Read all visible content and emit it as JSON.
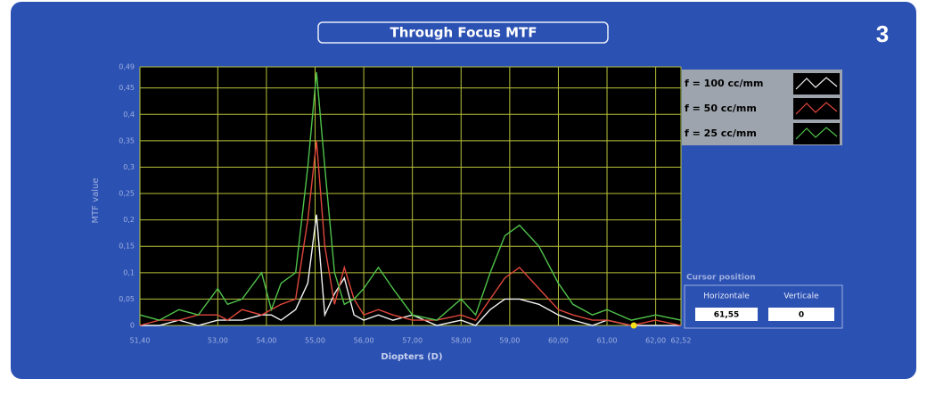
{
  "badge": "3",
  "chart_data": {
    "type": "line",
    "title": "Through Focus MTF",
    "x_label": "Diopters (D)",
    "y_label": "MTF value",
    "x": [
      51.4,
      51.8,
      52.2,
      52.6,
      53.0,
      53.2,
      53.5,
      53.9,
      54.1,
      54.3,
      54.6,
      54.85,
      55.03,
      55.2,
      55.4,
      55.6,
      55.8,
      56.0,
      56.3,
      56.6,
      57.0,
      57.5,
      58.0,
      58.3,
      58.6,
      58.9,
      59.2,
      59.6,
      60.0,
      60.3,
      60.7,
      61.0,
      61.5,
      62.0,
      62.52
    ],
    "series": [
      {
        "name": "f = 100 cc/mm",
        "color": "#f2f2f2",
        "values": [
          0.0,
          0.0,
          0.01,
          0.0,
          0.01,
          0.01,
          0.01,
          0.02,
          0.02,
          0.01,
          0.03,
          0.08,
          0.21,
          0.02,
          0.06,
          0.09,
          0.02,
          0.01,
          0.02,
          0.01,
          0.02,
          0.0,
          0.01,
          0.0,
          0.03,
          0.05,
          0.05,
          0.04,
          0.02,
          0.01,
          0.0,
          0.01,
          0.0,
          0.0,
          0.0
        ]
      },
      {
        "name": "f = 50 cc/mm",
        "color": "#e0463c",
        "values": [
          0.0,
          0.01,
          0.01,
          0.02,
          0.02,
          0.01,
          0.03,
          0.02,
          0.03,
          0.04,
          0.05,
          0.2,
          0.35,
          0.15,
          0.04,
          0.11,
          0.05,
          0.02,
          0.03,
          0.02,
          0.01,
          0.01,
          0.02,
          0.01,
          0.05,
          0.09,
          0.11,
          0.07,
          0.03,
          0.02,
          0.01,
          0.01,
          0.0,
          0.01,
          0.0
        ]
      },
      {
        "name": "f = 25 cc/mm",
        "color": "#4fc24a",
        "values": [
          0.02,
          0.01,
          0.03,
          0.02,
          0.07,
          0.04,
          0.05,
          0.1,
          0.03,
          0.08,
          0.1,
          0.3,
          0.48,
          0.3,
          0.1,
          0.04,
          0.05,
          0.07,
          0.11,
          0.07,
          0.02,
          0.01,
          0.05,
          0.02,
          0.1,
          0.17,
          0.19,
          0.15,
          0.08,
          0.04,
          0.02,
          0.03,
          0.01,
          0.02,
          0.01
        ]
      }
    ],
    "xlim": [
      51.4,
      62.52
    ],
    "xticks": [
      {
        "value": 51.4,
        "label": "51,40"
      },
      {
        "value": 53,
        "label": "53,00"
      },
      {
        "value": 54,
        "label": "54,00"
      },
      {
        "value": 55,
        "label": "55,00"
      },
      {
        "value": 56,
        "label": "56,00"
      },
      {
        "value": 57,
        "label": "57,00"
      },
      {
        "value": 58,
        "label": "58,00"
      },
      {
        "value": 59,
        "label": "59,00"
      },
      {
        "value": 60,
        "label": "60,00"
      },
      {
        "value": 61,
        "label": "61,00"
      },
      {
        "value": 62,
        "label": "62,00"
      },
      {
        "value": 62.52,
        "label": "62,52"
      }
    ],
    "ylim": [
      0,
      0.49
    ],
    "yticks": [
      0,
      {
        "value": 0.05,
        "label": "0,05"
      },
      {
        "value": 0.1,
        "label": "0,1"
      },
      {
        "value": 0.15,
        "label": "0,15"
      },
      {
        "value": 0.2,
        "label": "0,2"
      },
      {
        "value": 0.25,
        "label": "0,25"
      },
      {
        "value": 0.3,
        "label": "0,3"
      },
      {
        "value": 0.35,
        "label": "0,35"
      },
      {
        "value": 0.4,
        "label": "0,4"
      },
      {
        "value": 0.45,
        "label": "0,45"
      },
      {
        "value": 0.49,
        "label": "0,49"
      }
    ],
    "grid": true,
    "grid_color": "#b9c23c",
    "cursor": {
      "title": "Cursor position",
      "x_name": "Horizontale",
      "y_name": "Verticale",
      "x": {
        "value": 61.55,
        "label": "61,55"
      },
      "y": 0,
      "color": "#f5e11a"
    }
  }
}
